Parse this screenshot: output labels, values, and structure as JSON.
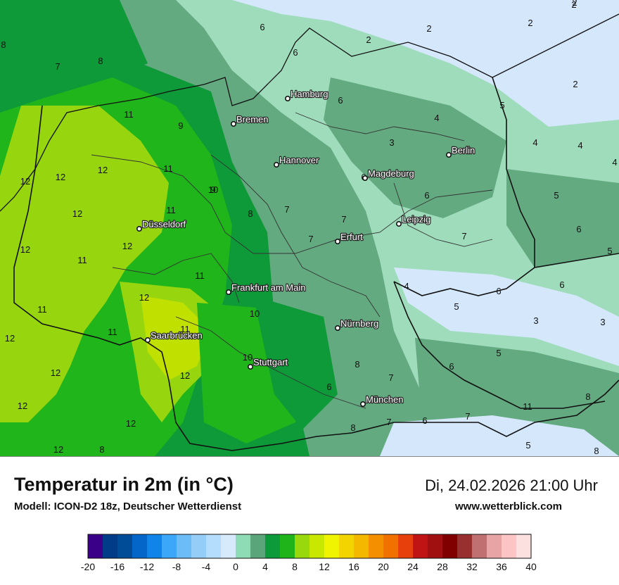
{
  "map": {
    "cities": [
      {
        "name": "Hamburg"
      },
      {
        "name": "Bremen"
      },
      {
        "name": "Berlin"
      },
      {
        "name": "Hannover"
      },
      {
        "name": "Magdeburg"
      },
      {
        "name": "Düsseldorf"
      },
      {
        "name": "Leipzig"
      },
      {
        "name": "Erfurt"
      },
      {
        "name": "Frankfurt am Main"
      },
      {
        "name": "Nürnberg"
      },
      {
        "name": "Saarbrücken"
      },
      {
        "name": "Stuttgart"
      },
      {
        "name": "München"
      }
    ],
    "temperature_labels": [
      "8",
      "7",
      "8",
      "6",
      "6",
      "2",
      "2",
      "2",
      "2",
      "2",
      "2",
      "9",
      "6",
      "5",
      "4",
      "11",
      "12",
      "12",
      "12",
      "11",
      "9",
      "3",
      "4",
      "4",
      "4",
      "10",
      "7",
      "6",
      "12",
      "11",
      "8",
      "7",
      "6",
      "5",
      "6",
      "12",
      "7",
      "7",
      "5",
      "12",
      "11",
      "4",
      "6",
      "6",
      "11",
      "12",
      "10",
      "5",
      "3",
      "3",
      "11",
      "11",
      "12",
      "11",
      "8",
      "5",
      "6",
      "12",
      "10",
      "12",
      "7",
      "6",
      "11",
      "8",
      "8",
      "12",
      "12",
      "12",
      "8",
      "7",
      "6",
      "7",
      "5",
      "8"
    ],
    "colors": {
      "t2_4": "#9fdcbc",
      "t4_6": "#63aa80",
      "t6_8": "#0e9a38",
      "t8_10": "#20b51a",
      "t10_12": "#97d60e",
      "t12_14": "#c0e000",
      "t0_2": "#d5e8fb"
    }
  },
  "footer": {
    "title": "Temperatur in 2m (in °C)",
    "subtitle": "Modell: ICON-D2 18z, Deutscher Wetterdienst",
    "datetime": "Di, 24.02.2026 21:00 Uhr",
    "site": "www.wetterblick.com"
  },
  "legend": {
    "colors": [
      "#3a0088",
      "#003c88",
      "#004c96",
      "#0466c8",
      "#1084e8",
      "#3ca6f8",
      "#6cbcf8",
      "#94cdf8",
      "#b4dcfc",
      "#d6eafc",
      "#8edcb6",
      "#5aa67a",
      "#0c9a3a",
      "#1eb41a",
      "#98d80c",
      "#c8e802",
      "#f0f400",
      "#f4d400",
      "#f4b800",
      "#f49000",
      "#f07000",
      "#e8400c",
      "#c01414",
      "#a01010",
      "#800000",
      "#983030",
      "#c07070",
      "#e8a4a4",
      "#fcc4c4",
      "#fce0e0"
    ],
    "ticks": [
      "-20",
      "-16",
      "-12",
      "-8",
      "-4",
      "0",
      "4",
      "8",
      "12",
      "16",
      "20",
      "24",
      "28",
      "32",
      "36",
      "40"
    ]
  }
}
